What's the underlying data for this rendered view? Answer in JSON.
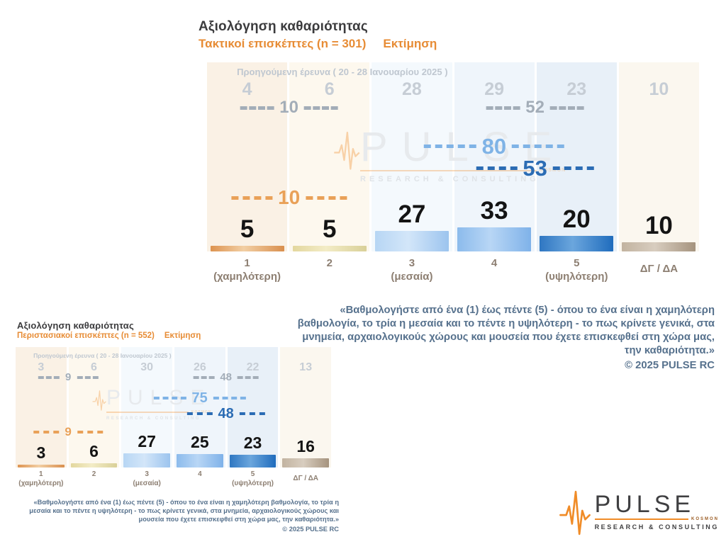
{
  "palette": {
    "title_color": "#3b3b3d",
    "accent_orange": "#e78c35",
    "prev_value_gray": "#c6cdd5",
    "prev_header_gray": "#bfc7d0",
    "marker_gray": "#a3adb8",
    "marker_light_blue": "#7fb3e6",
    "marker_dark_blue": "#2b6cb4",
    "marker_orange": "#e9a158",
    "big_number_color": "#141414",
    "category_color": "#8d7f72",
    "quote_color": "#56718d",
    "logo_dark": "#3f3f41",
    "logo_orange": "#f08c28",
    "column_bg": [
      "#faf1e5",
      "#fdf8ee",
      "#f4f9fd",
      "#eff5fb",
      "#e8f0f8",
      "#fbf7ef"
    ],
    "bar_colors": [
      [
        "#dd9350",
        "#f2cfa4",
        "#d98f4e"
      ],
      [
        "#e3d79e",
        "#f3ecc6",
        "#d9d098"
      ],
      [
        "#b7d6f4",
        "#d3e6f9",
        "#9cc4ee"
      ],
      [
        "#8cbbec",
        "#b8d6f5",
        "#7fb2e9"
      ],
      [
        "#2f77c2",
        "#6ba6dd",
        "#1f6cbd"
      ],
      [
        "#c2b3a0",
        "#d8cdbf",
        "#a5937e"
      ]
    ]
  },
  "chart_data": [
    {
      "type": "bar",
      "title": "Αξιολόγηση καθαριότητας",
      "subtitle": "Τακτικοί επισκέπτες  (n = 301)",
      "estimate_label": "Εκτίμηση",
      "prev_label": "Προηγούμενη έρευνα ( 20 - 28 Ιανουαρίου 2025 )",
      "categories": [
        "1",
        "2",
        "3",
        "4",
        "5",
        "ΔΓ / ΔΑ"
      ],
      "category_notes": [
        "(χαμηλότερη)",
        "",
        "(μεσαία)",
        "",
        "(υψηλότερη)",
        ""
      ],
      "series": [
        {
          "name": "Εκτίμηση",
          "values": [
            5,
            5,
            27,
            33,
            20,
            10
          ]
        },
        {
          "name": "Προηγούμενη έρευνα ( 20 - 28 Ιανουαρίου 2025 )",
          "values": [
            4,
            6,
            28,
            29,
            23,
            10
          ]
        }
      ],
      "markers": [
        {
          "id": "prev_low",
          "value": 10,
          "style": "gray",
          "series": "previous",
          "categories": "1+2",
          "center": 1
        },
        {
          "id": "prev_high",
          "value": 52,
          "style": "gray",
          "series": "previous",
          "categories": "4+5",
          "center": 4
        },
        {
          "id": "cur_high3",
          "value": 80,
          "style": "lightblue",
          "series": "current",
          "categories": "3+4+5",
          "center": 3.5
        },
        {
          "id": "cur_high2",
          "value": 53,
          "style": "darkblue",
          "series": "current",
          "categories": "4+5",
          "center": 4
        },
        {
          "id": "cur_low",
          "value": 10,
          "style": "orange",
          "series": "current",
          "categories": "1+2",
          "center": 1
        }
      ]
    },
    {
      "type": "bar",
      "title": "Αξιολόγηση καθαριότητας",
      "subtitle": "Περιστασιακοί επισκέπτες  (n = 552)",
      "estimate_label": "Εκτίμηση",
      "prev_label": "Προηγούμενη έρευνα ( 20 - 28 Ιανουαρίου 2025 )",
      "categories": [
        "1",
        "2",
        "3",
        "4",
        "5",
        "ΔΓ / ΔΑ"
      ],
      "category_notes": [
        "(χαμηλότερη)",
        "",
        "(μεσαία)",
        "",
        "(υψηλότερη)",
        ""
      ],
      "series": [
        {
          "name": "Εκτίμηση",
          "values": [
            3,
            6,
            27,
            25,
            23,
            16
          ]
        },
        {
          "name": "Προηγούμενη έρευνα ( 20 - 28 Ιανουαρίου 2025 )",
          "values": [
            3,
            6,
            30,
            26,
            22,
            13
          ]
        }
      ],
      "markers": [
        {
          "id": "prev_low",
          "value": 9,
          "style": "gray",
          "series": "previous",
          "categories": "1+2",
          "center": 1
        },
        {
          "id": "prev_high",
          "value": 48,
          "style": "gray",
          "series": "previous",
          "categories": "4+5",
          "center": 4
        },
        {
          "id": "cur_high3",
          "value": 75,
          "style": "lightblue",
          "series": "current",
          "categories": "3+4+5",
          "center": 3.5
        },
        {
          "id": "cur_high2",
          "value": 48,
          "style": "darkblue",
          "series": "current",
          "categories": "4+5",
          "center": 4
        },
        {
          "id": "cur_low",
          "value": 9,
          "style": "orange",
          "series": "current",
          "categories": "1+2",
          "center": 1
        }
      ]
    }
  ],
  "quote": {
    "text": "«Βαθμολογήστε από ένα (1) έως πέντε (5) - όπου το ένα είναι η χαμηλότερη βαθμολογία, το τρία η μεσαία και το πέντε η υψηλότερη - το πως κρίνετε γενικά, στα μνημεία, αρχαιολογικούς χώρους και μουσεία που έχετε επισκεφθεί στη χώρα μας, την καθαριότητα.»",
    "copyright": "©  2025  PULSE RC"
  },
  "logo": {
    "brand": "PULSE",
    "kosmon": "KOSMON",
    "tagline": "RESEARCH & CONSULTING"
  }
}
